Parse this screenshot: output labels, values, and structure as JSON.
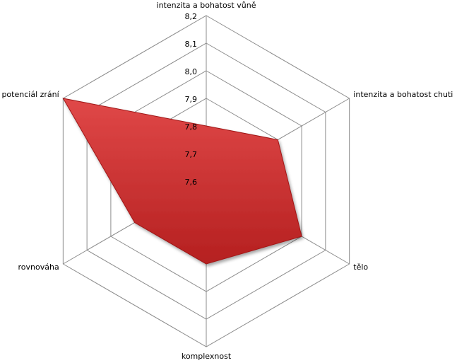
{
  "chart_data": {
    "type": "radar",
    "categories": [
      "intenzita a bohatost vůně",
      "intenzita a bohatost chuti",
      "tělo",
      "komplexnost",
      "rovnováha",
      "potenciál zrání"
    ],
    "series": [
      {
        "color": "#d23b3b",
        "values": [
          7.8,
          7.9,
          8.0,
          7.9,
          7.9,
          8.2
        ]
      }
    ],
    "ylim": [
      7.6,
      8.2
    ],
    "yticks": [
      {
        "value": 7.6,
        "label": "7,6"
      },
      {
        "value": 7.7,
        "label": "7,7"
      },
      {
        "value": 7.8,
        "label": "7,8"
      },
      {
        "value": 7.9,
        "label": "7,9"
      },
      {
        "value": 8.0,
        "label": "8,0"
      },
      {
        "value": 8.1,
        "label": "8,1"
      },
      {
        "value": 8.2,
        "label": "8,2"
      }
    ],
    "grid": true
  }
}
